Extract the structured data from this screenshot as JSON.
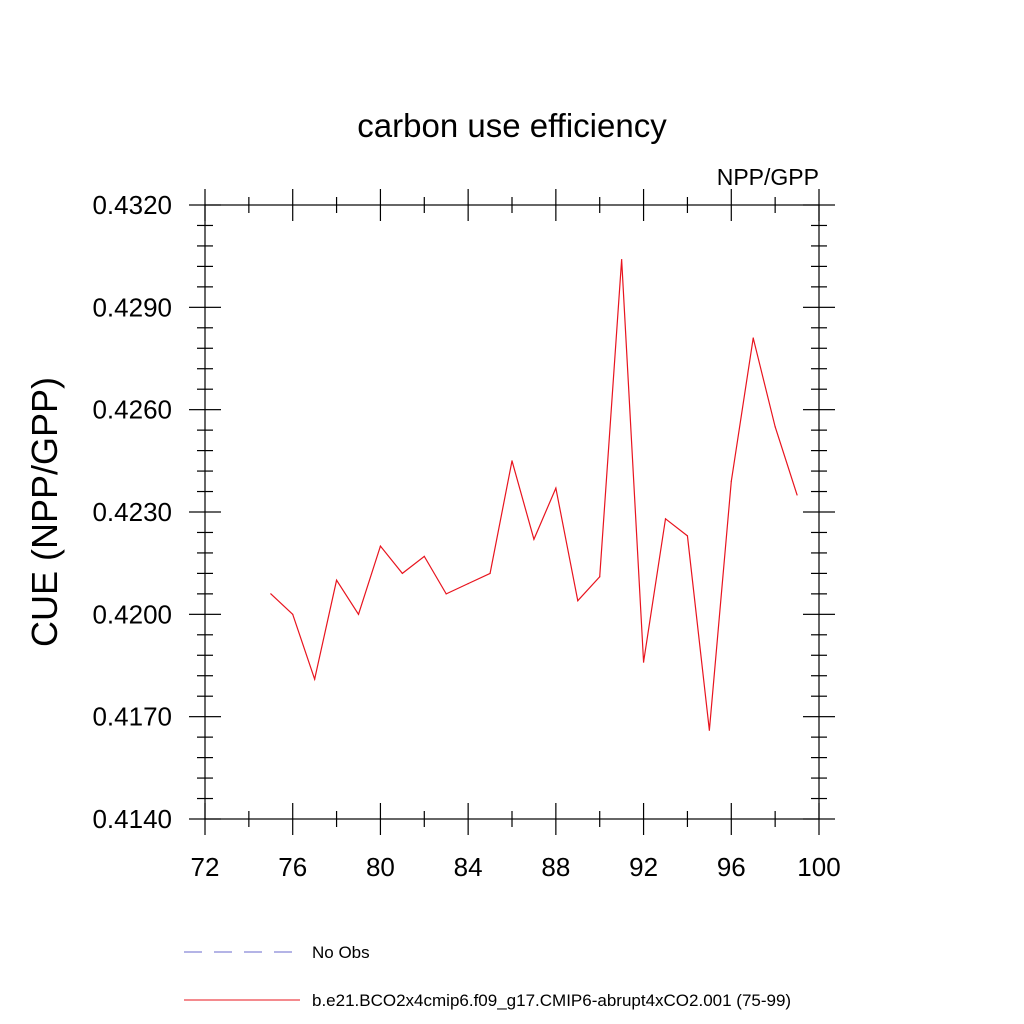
{
  "chart_data": {
    "type": "line",
    "title": "carbon use efficiency",
    "subtitle": "NPP/GPP",
    "xlabel": "",
    "ylabel": "CUE  (NPP/GPP)",
    "xlim": [
      72,
      100
    ],
    "ylim": [
      0.414,
      0.432
    ],
    "x_ticks": [
      72,
      76,
      80,
      84,
      88,
      92,
      96,
      100
    ],
    "y_ticks": [
      0.414,
      0.417,
      0.42,
      0.423,
      0.426,
      0.429,
      0.432
    ],
    "x_tick_labels": [
      "72",
      "76",
      "80",
      "84",
      "88",
      "92",
      "96",
      "100"
    ],
    "y_tick_labels": [
      "0.4140",
      "0.4170",
      "0.4200",
      "0.4230",
      "0.4260",
      "0.4290",
      "0.4320"
    ],
    "grid": false,
    "legend_position": "bottom",
    "series": [
      {
        "name": "No Obs",
        "color": "#6a6acd",
        "dash": "dashed",
        "x": [],
        "values": []
      },
      {
        "name": "b.e21.BCO2x4cmip6.f09_g17.CMIP6-abrupt4xCO2.001 (75-99)",
        "color": "#e8141e",
        "dash": "solid",
        "x": [
          75,
          76,
          77,
          78,
          79,
          80,
          81,
          82,
          83,
          84,
          85,
          86,
          87,
          88,
          89,
          90,
          91,
          92,
          93,
          94,
          95,
          96,
          97,
          98,
          99
        ],
        "values": [
          0.4206,
          0.42,
          0.4181,
          0.421,
          0.42,
          0.422,
          0.4212,
          0.4217,
          0.4206,
          0.4209,
          0.4212,
          0.4245,
          0.4222,
          0.4237,
          0.4204,
          0.4211,
          0.4304,
          0.4186,
          0.4228,
          0.4223,
          0.4166,
          0.4239,
          0.4281,
          0.4255,
          0.4235
        ]
      }
    ]
  }
}
